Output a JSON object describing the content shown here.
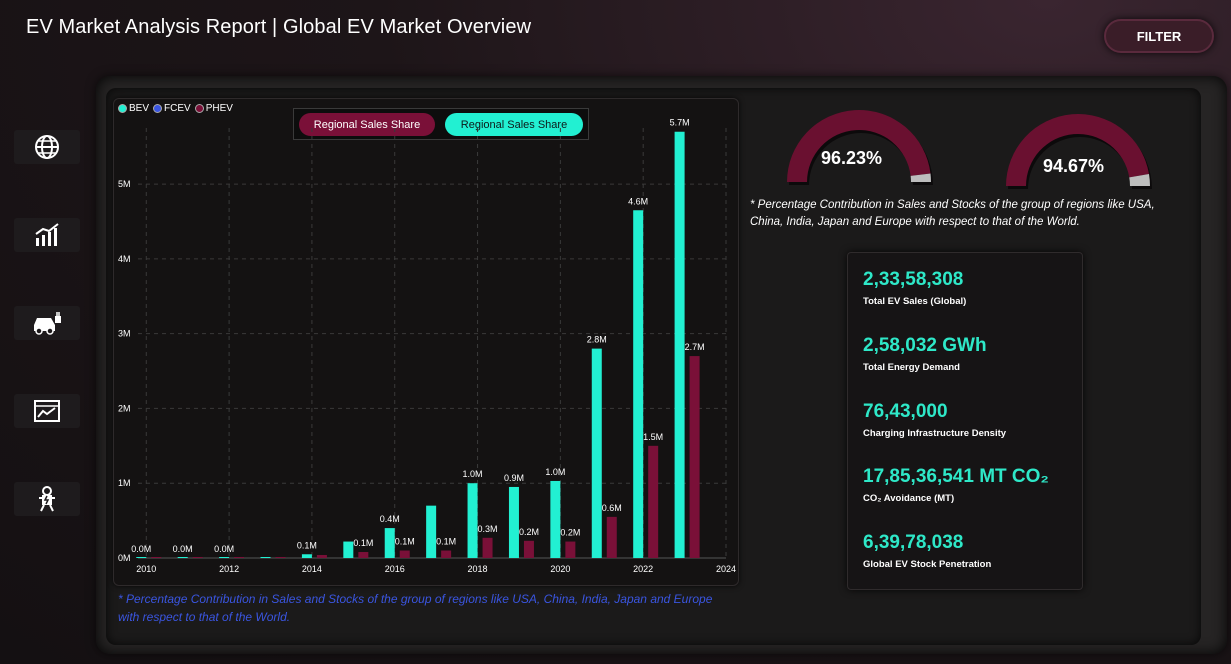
{
  "header": {
    "title": "EV Market Analysis Report | Global EV Market Overview",
    "filter_label": "FILTER"
  },
  "nav": [
    {
      "icon": "globe-icon"
    },
    {
      "icon": "bar-chart-icon"
    },
    {
      "icon": "ev-car-charging-icon"
    },
    {
      "icon": "line-chart-icon"
    },
    {
      "icon": "charging-station-icon"
    }
  ],
  "legend": {
    "bev": "BEV",
    "fcev": "FCEV",
    "phev": "PHEV"
  },
  "toggle": {
    "left": "Regional Sales Share",
    "right": "Regional Sales Share"
  },
  "colors": {
    "bev": "#22f0d2",
    "phev": "#7a1038",
    "fcev": "#3a55e0",
    "accent": "#2ee8c8",
    "gauge": "#6a1030"
  },
  "chart_data": {
    "type": "bar",
    "x": [
      2010,
      2011,
      2012,
      2013,
      2014,
      2015,
      2016,
      2017,
      2018,
      2019,
      2020,
      2021,
      2022,
      2023
    ],
    "series": [
      {
        "name": "BEV",
        "values": [
          0.0,
          0.0,
          0.0,
          0.01,
          0.05,
          0.22,
          0.4,
          0.7,
          1.0,
          0.95,
          1.03,
          2.8,
          4.65,
          5.7
        ]
      },
      {
        "name": "PHEV",
        "values": [
          0.0,
          0.0,
          0.0,
          0.01,
          0.04,
          0.08,
          0.1,
          0.1,
          0.27,
          0.23,
          0.22,
          0.55,
          1.5,
          2.7
        ]
      },
      {
        "name": "FCEV",
        "values": [
          0,
          0,
          0,
          0,
          0,
          0,
          0,
          0,
          0,
          0,
          0,
          0,
          0,
          0
        ]
      }
    ],
    "labels": [
      {
        "x": 2010,
        "text": "0.0M",
        "series": "BEV"
      },
      {
        "x": 2011,
        "text": "0.0M",
        "series": "BEV"
      },
      {
        "x": 2012,
        "text": "0.0M",
        "series": "BEV"
      },
      {
        "x": 2014,
        "text": "0.1M",
        "series": "BEV"
      },
      {
        "x": 2015,
        "text": "0.1M",
        "series": "PHEV"
      },
      {
        "x": 2016,
        "text": "0.4M",
        "series": "BEV"
      },
      {
        "x": 2016,
        "text": "0.1M",
        "series": "PHEV"
      },
      {
        "x": 2017,
        "text": "0.1M",
        "series": "PHEV"
      },
      {
        "x": 2018,
        "text": "1.0M",
        "series": "BEV"
      },
      {
        "x": 2018,
        "text": "0.3M",
        "series": "PHEV"
      },
      {
        "x": 2019,
        "text": "0.9M",
        "series": "BEV"
      },
      {
        "x": 2019,
        "text": "0.2M",
        "series": "PHEV"
      },
      {
        "x": 2020,
        "text": "1.0M",
        "series": "BEV"
      },
      {
        "x": 2020,
        "text": "0.2M",
        "series": "PHEV"
      },
      {
        "x": 2021,
        "text": "2.8M",
        "series": "BEV"
      },
      {
        "x": 2021,
        "text": "0.6M",
        "series": "PHEV"
      },
      {
        "x": 2022,
        "text": "4.6M",
        "series": "BEV"
      },
      {
        "x": 2022,
        "text": "1.5M",
        "series": "PHEV"
      },
      {
        "x": 2023,
        "text": "5.7M",
        "series": "BEV"
      },
      {
        "x": 2023,
        "text": "2.7M",
        "series": "PHEV"
      }
    ],
    "y_ticks": [
      "0M",
      "1M",
      "2M",
      "3M",
      "4M",
      "5M"
    ],
    "x_ticks": [
      "2010",
      "2012",
      "2014",
      "2016",
      "2018",
      "2020",
      "2022",
      "2024"
    ],
    "ylim": [
      0,
      5.75
    ],
    "xlim": [
      2009.8,
      2024
    ],
    "grid": true,
    "legend_position": "top-left"
  },
  "gauges": [
    {
      "value": 0.9623,
      "label": "96.23%"
    },
    {
      "value": 0.9467,
      "label": "94.67%"
    }
  ],
  "notes": {
    "right": "* Percentage Contribution in Sales and Stocks of the group of regions like USA, China, India, Japan and Europe with respect to that of the World.",
    "bottom": "* Percentage Contribution in Sales and Stocks of the group of regions like USA, China, India, Japan and Europe with respect to that of the World."
  },
  "kpis": [
    {
      "value": "2,33,58,308",
      "label": "Total EV Sales (Global)"
    },
    {
      "value": "2,58,032 GWh",
      "label": "Total Energy Demand"
    },
    {
      "value": "76,43,000",
      "label": "Charging Infrastructure Density"
    },
    {
      "value": "17,85,36,541 MT CO₂",
      "label": "CO₂ Avoidance (MT)"
    },
    {
      "value": "6,39,78,038",
      "label": "Global EV Stock Penetration"
    }
  ]
}
